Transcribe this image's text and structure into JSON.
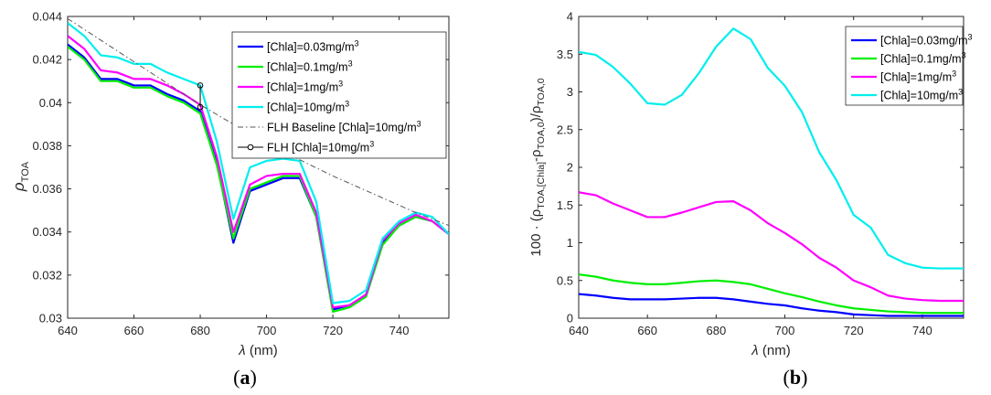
{
  "chart_data": [
    {
      "type": "line",
      "caption": "(a)",
      "caption_letter": "a",
      "xlabel_symbol": "λ",
      "xlabel_unit": "(nm)",
      "ylabel_main": "ρ",
      "ylabel_sub": "TOA",
      "xlim": [
        640,
        755
      ],
      "ylim": [
        0.03,
        0.044
      ],
      "xticks": [
        640,
        660,
        680,
        700,
        720,
        740
      ],
      "xtick_labels": [
        "640",
        "660",
        "680",
        "700",
        "720",
        "740"
      ],
      "yticks": [
        0.03,
        0.032,
        0.034,
        0.036,
        0.038,
        0.04,
        0.042,
        0.044
      ],
      "ytick_labels": [
        "0.03",
        "0.032",
        "0.034",
        "0.036",
        "0.038",
        "0.04",
        "0.042",
        "0.044"
      ],
      "grid": false,
      "legend_position": "top-right",
      "x": [
        640,
        645,
        650,
        655,
        660,
        665,
        670,
        675,
        680,
        685,
        690,
        695,
        700,
        705,
        710,
        715,
        720,
        725,
        730,
        735,
        740,
        745,
        750,
        755
      ],
      "series": [
        {
          "name": "[Chla]=0.03mg/m",
          "sup": "3",
          "color": "#0000ff",
          "style": "solid",
          "width": 2.2,
          "values": [
            0.0427,
            0.0421,
            0.0411,
            0.0411,
            0.0408,
            0.0408,
            0.0404,
            0.0401,
            0.0396,
            0.0372,
            0.0335,
            0.0359,
            0.0362,
            0.0365,
            0.0365,
            0.0347,
            0.0304,
            0.0306,
            0.031,
            0.0335,
            0.0343,
            0.0347,
            0.0345,
            0.0339
          ]
        },
        {
          "name": "[Chla]=0.1mg/m",
          "sup": "3",
          "color": "#00ee00",
          "style": "solid",
          "width": 2.2,
          "values": [
            0.0426,
            0.042,
            0.041,
            0.041,
            0.0407,
            0.0407,
            0.0403,
            0.04,
            0.0395,
            0.0371,
            0.0337,
            0.036,
            0.0363,
            0.0366,
            0.0366,
            0.0347,
            0.0303,
            0.0305,
            0.031,
            0.0334,
            0.0343,
            0.0347,
            0.0345,
            0.0339
          ]
        },
        {
          "name": "[Chla]=1mg/m",
          "sup": "3",
          "color": "#ff00ff",
          "style": "solid",
          "width": 2.2,
          "values": [
            0.0431,
            0.0425,
            0.0415,
            0.0414,
            0.0411,
            0.0411,
            0.0408,
            0.0404,
            0.0399,
            0.0375,
            0.034,
            0.0362,
            0.0366,
            0.0367,
            0.0367,
            0.0349,
            0.0305,
            0.0306,
            0.0311,
            0.0336,
            0.0344,
            0.0348,
            0.0345,
            0.0339
          ]
        },
        {
          "name": "[Chla]=10mg/m",
          "sup": "3",
          "color": "#00eeee",
          "style": "solid",
          "width": 2.2,
          "values": [
            0.0437,
            0.0431,
            0.0422,
            0.0421,
            0.0418,
            0.0418,
            0.0414,
            0.0411,
            0.0408,
            0.0382,
            0.0346,
            0.037,
            0.0373,
            0.0374,
            0.0373,
            0.0354,
            0.0307,
            0.0308,
            0.0313,
            0.0337,
            0.0345,
            0.0349,
            0.0347,
            0.0339
          ]
        },
        {
          "name": "FLH Baseline [Chla]=10mg/m",
          "sup": "3",
          "color": "#555555",
          "style": "dashdot",
          "width": 1,
          "x": [
            640,
            660,
            680,
            700,
            720,
            745,
            755
          ],
          "values": [
            0.0439,
            0.0419,
            0.0399,
            0.0381,
            0.0366,
            0.0349,
            0.0343
          ]
        },
        {
          "name": "FLH [Chla]=10mg/m",
          "sup": "3",
          "color": "#000000",
          "style": "marker-line",
          "width": 1,
          "x": [
            680,
            680
          ],
          "values": [
            0.0398,
            0.0408
          ]
        }
      ]
    },
    {
      "type": "line",
      "caption": "(b)",
      "caption_letter": "b",
      "xlabel_symbol": "λ",
      "xlabel_unit": "(nm)",
      "ylabel_parts": [
        "100 · (ρ",
        "TOA,[Chla]",
        "-ρ",
        "TOA,0",
        ")/ρ",
        "TOA,0"
      ],
      "xlim": [
        640,
        752
      ],
      "ylim": [
        0,
        4
      ],
      "xticks": [
        640,
        660,
        680,
        700,
        720,
        740
      ],
      "xtick_labels": [
        "640",
        "660",
        "680",
        "700",
        "720",
        "740"
      ],
      "yticks": [
        0,
        0.5,
        1,
        1.5,
        2,
        2.5,
        3,
        3.5,
        4
      ],
      "ytick_labels": [
        "0",
        "0.5",
        "1",
        "1.5",
        "2",
        "2.5",
        "3",
        "3.5",
        "4"
      ],
      "grid": false,
      "legend_position": "top-right",
      "x": [
        640,
        645,
        650,
        655,
        660,
        665,
        670,
        675,
        680,
        685,
        690,
        695,
        700,
        705,
        710,
        715,
        720,
        725,
        730,
        735,
        740,
        745,
        750,
        752
      ],
      "series": [
        {
          "name": "[Chla]=0.03mg/m",
          "sup": "3",
          "color": "#0000ff",
          "style": "solid",
          "width": 2.2,
          "values": [
            0.32,
            0.3,
            0.27,
            0.25,
            0.25,
            0.25,
            0.26,
            0.27,
            0.27,
            0.25,
            0.22,
            0.19,
            0.17,
            0.13,
            0.1,
            0.08,
            0.05,
            0.04,
            0.03,
            0.03,
            0.03,
            0.03,
            0.03,
            0.03
          ]
        },
        {
          "name": "[Chla]=0.1mg/m",
          "sup": "3",
          "color": "#00ee00",
          "style": "solid",
          "width": 2.2,
          "values": [
            0.58,
            0.55,
            0.5,
            0.47,
            0.45,
            0.45,
            0.47,
            0.49,
            0.5,
            0.48,
            0.45,
            0.39,
            0.33,
            0.28,
            0.22,
            0.17,
            0.13,
            0.11,
            0.09,
            0.08,
            0.07,
            0.07,
            0.07,
            0.07
          ]
        },
        {
          "name": "[Chla]=1mg/m",
          "sup": "3",
          "color": "#ff00ff",
          "style": "solid",
          "width": 2.2,
          "values": [
            1.67,
            1.63,
            1.52,
            1.43,
            1.34,
            1.34,
            1.4,
            1.47,
            1.54,
            1.55,
            1.43,
            1.26,
            1.13,
            0.98,
            0.8,
            0.67,
            0.5,
            0.41,
            0.3,
            0.26,
            0.24,
            0.23,
            0.23,
            0.23
          ]
        },
        {
          "name": "[Chla]=10mg/m",
          "sup": "3",
          "color": "#00eeee",
          "style": "solid",
          "width": 2.2,
          "values": [
            3.53,
            3.49,
            3.33,
            3.11,
            2.85,
            2.83,
            2.96,
            3.25,
            3.6,
            3.84,
            3.7,
            3.32,
            3.08,
            2.73,
            2.2,
            1.83,
            1.37,
            1.2,
            0.84,
            0.73,
            0.67,
            0.66,
            0.66,
            0.66
          ]
        }
      ]
    }
  ]
}
